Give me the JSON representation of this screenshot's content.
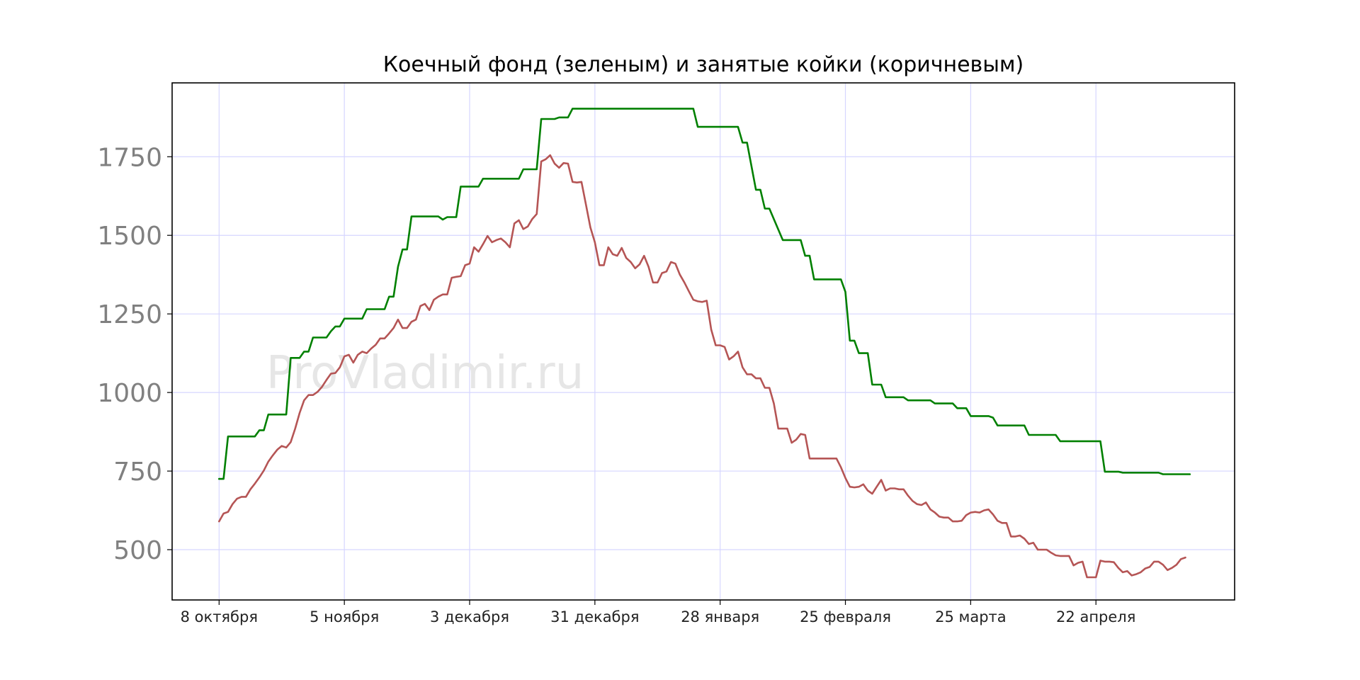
{
  "chart_data": {
    "type": "line",
    "title": "Коечный фонд (зеленым) и занятые койки (коричневым)",
    "watermark": "ProVladimir.ru",
    "xlabel": "",
    "ylabel": "",
    "grid": true,
    "legend": "none",
    "x_ticks": [
      {
        "day": 0,
        "label": "8 октября"
      },
      {
        "day": 28,
        "label": "5 ноября"
      },
      {
        "day": 56,
        "label": "3 декабря"
      },
      {
        "day": 84,
        "label": "31 декабря"
      },
      {
        "day": 112,
        "label": "28 января"
      },
      {
        "day": 140,
        "label": "25 февраля"
      },
      {
        "day": 168,
        "label": "25 марта"
      },
      {
        "day": 196,
        "label": "22 апреля"
      }
    ],
    "x_range": [
      -10.5,
      227
    ],
    "y_ticks": [
      500,
      750,
      1000,
      1250,
      1500,
      1750
    ],
    "ylim": [
      340,
      1985
    ],
    "series": [
      {
        "color": "#008000",
        "points": [
          [
            0,
            725
          ],
          [
            1,
            725
          ],
          [
            2,
            860
          ],
          [
            8,
            860
          ],
          [
            9,
            880
          ],
          [
            10,
            880
          ],
          [
            11,
            930
          ],
          [
            15,
            930
          ],
          [
            16,
            1110
          ],
          [
            18,
            1110
          ],
          [
            19,
            1130
          ],
          [
            20,
            1130
          ],
          [
            21,
            1175
          ],
          [
            24,
            1175
          ],
          [
            25,
            1195
          ],
          [
            26,
            1210
          ],
          [
            27,
            1210
          ],
          [
            28,
            1235
          ],
          [
            32,
            1235
          ],
          [
            33,
            1265
          ],
          [
            37,
            1265
          ],
          [
            38,
            1305
          ],
          [
            39,
            1305
          ],
          [
            40,
            1400
          ],
          [
            41,
            1455
          ],
          [
            42,
            1455
          ],
          [
            43,
            1560
          ],
          [
            49,
            1560
          ],
          [
            50,
            1550
          ],
          [
            51,
            1558
          ],
          [
            53,
            1558
          ],
          [
            54,
            1655
          ],
          [
            58,
            1655
          ],
          [
            59,
            1680
          ],
          [
            67,
            1680
          ],
          [
            68,
            1710
          ],
          [
            71,
            1710
          ],
          [
            72,
            1870
          ],
          [
            75,
            1870
          ],
          [
            76,
            1875
          ],
          [
            78,
            1875
          ],
          [
            79,
            1903
          ],
          [
            106,
            1903
          ],
          [
            107,
            1845
          ],
          [
            116,
            1845
          ],
          [
            117,
            1795
          ],
          [
            118,
            1795
          ],
          [
            120,
            1645
          ],
          [
            121,
            1645
          ],
          [
            122,
            1585
          ],
          [
            123,
            1585
          ],
          [
            126,
            1485
          ],
          [
            130,
            1485
          ],
          [
            131,
            1435
          ],
          [
            132,
            1435
          ],
          [
            133,
            1360
          ],
          [
            139,
            1360
          ],
          [
            140,
            1320
          ],
          [
            141,
            1165
          ],
          [
            142,
            1165
          ],
          [
            143,
            1125
          ],
          [
            145,
            1125
          ],
          [
            146,
            1025
          ],
          [
            148,
            1025
          ],
          [
            149,
            985
          ],
          [
            153,
            985
          ],
          [
            154,
            975
          ],
          [
            159,
            975
          ],
          [
            160,
            965
          ],
          [
            164,
            965
          ],
          [
            165,
            950
          ],
          [
            167,
            950
          ],
          [
            168,
            925
          ],
          [
            172,
            925
          ],
          [
            173,
            920
          ],
          [
            174,
            895
          ],
          [
            180,
            895
          ],
          [
            181,
            865
          ],
          [
            187,
            865
          ],
          [
            188,
            845
          ],
          [
            197,
            845
          ],
          [
            198,
            748
          ],
          [
            201,
            748
          ],
          [
            202,
            745
          ],
          [
            210,
            745
          ],
          [
            211,
            740
          ],
          [
            217,
            740
          ]
        ]
      },
      {
        "color": "#b55555",
        "points": [
          [
            0,
            590
          ],
          [
            1,
            615
          ],
          [
            2,
            620
          ],
          [
            3,
            645
          ],
          [
            4,
            662
          ],
          [
            5,
            668
          ],
          [
            6,
            668
          ],
          [
            7,
            692
          ],
          [
            8,
            710
          ],
          [
            9,
            730
          ],
          [
            10,
            752
          ],
          [
            11,
            780
          ],
          [
            12,
            800
          ],
          [
            13,
            818
          ],
          [
            14,
            830
          ],
          [
            15,
            825
          ],
          [
            16,
            842
          ],
          [
            17,
            885
          ],
          [
            18,
            935
          ],
          [
            19,
            975
          ],
          [
            20,
            992
          ],
          [
            21,
            992
          ],
          [
            22,
            1002
          ],
          [
            23,
            1018
          ],
          [
            24,
            1040
          ],
          [
            25,
            1060
          ],
          [
            26,
            1062
          ],
          [
            27,
            1080
          ],
          [
            28,
            1115
          ],
          [
            29,
            1120
          ],
          [
            30,
            1095
          ],
          [
            31,
            1120
          ],
          [
            32,
            1130
          ],
          [
            33,
            1125
          ],
          [
            34,
            1140
          ],
          [
            35,
            1152
          ],
          [
            36,
            1172
          ],
          [
            37,
            1172
          ],
          [
            38,
            1188
          ],
          [
            39,
            1205
          ],
          [
            40,
            1232
          ],
          [
            41,
            1205
          ],
          [
            42,
            1205
          ],
          [
            43,
            1225
          ],
          [
            44,
            1232
          ],
          [
            45,
            1275
          ],
          [
            46,
            1282
          ],
          [
            47,
            1262
          ],
          [
            48,
            1295
          ],
          [
            49,
            1305
          ],
          [
            50,
            1312
          ],
          [
            51,
            1312
          ],
          [
            52,
            1365
          ],
          [
            53,
            1368
          ],
          [
            54,
            1370
          ],
          [
            55,
            1405
          ],
          [
            56,
            1410
          ],
          [
            57,
            1462
          ],
          [
            58,
            1448
          ],
          [
            59,
            1472
          ],
          [
            60,
            1498
          ],
          [
            61,
            1478
          ],
          [
            62,
            1485
          ],
          [
            63,
            1490
          ],
          [
            64,
            1478
          ],
          [
            65,
            1462
          ],
          [
            66,
            1538
          ],
          [
            67,
            1548
          ],
          [
            68,
            1520
          ],
          [
            69,
            1528
          ],
          [
            70,
            1552
          ],
          [
            71,
            1568
          ],
          [
            72,
            1735
          ],
          [
            73,
            1742
          ],
          [
            74,
            1755
          ],
          [
            75,
            1728
          ],
          [
            76,
            1715
          ],
          [
            77,
            1730
          ],
          [
            78,
            1728
          ],
          [
            79,
            1670
          ],
          [
            80,
            1668
          ],
          [
            81,
            1670
          ],
          [
            82,
            1598
          ],
          [
            83,
            1525
          ],
          [
            84,
            1478
          ],
          [
            85,
            1405
          ],
          [
            86,
            1405
          ],
          [
            87,
            1462
          ],
          [
            88,
            1440
          ],
          [
            89,
            1435
          ],
          [
            90,
            1460
          ],
          [
            91,
            1428
          ],
          [
            92,
            1415
          ],
          [
            93,
            1395
          ],
          [
            94,
            1408
          ],
          [
            95,
            1435
          ],
          [
            96,
            1400
          ],
          [
            97,
            1350
          ],
          [
            98,
            1350
          ],
          [
            99,
            1380
          ],
          [
            100,
            1385
          ],
          [
            101,
            1415
          ],
          [
            102,
            1410
          ],
          [
            103,
            1375
          ],
          [
            104,
            1350
          ],
          [
            105,
            1322
          ],
          [
            106,
            1295
          ],
          [
            107,
            1290
          ],
          [
            108,
            1288
          ],
          [
            109,
            1292
          ],
          [
            110,
            1200
          ],
          [
            111,
            1150
          ],
          [
            112,
            1150
          ],
          [
            113,
            1145
          ],
          [
            114,
            1105
          ],
          [
            115,
            1115
          ],
          [
            116,
            1130
          ],
          [
            117,
            1080
          ],
          [
            118,
            1058
          ],
          [
            119,
            1058
          ],
          [
            120,
            1045
          ],
          [
            121,
            1045
          ],
          [
            122,
            1015
          ],
          [
            123,
            1015
          ],
          [
            124,
            965
          ],
          [
            125,
            885
          ],
          [
            126,
            885
          ],
          [
            127,
            885
          ],
          [
            128,
            840
          ],
          [
            129,
            850
          ],
          [
            130,
            868
          ],
          [
            131,
            865
          ],
          [
            132,
            790
          ],
          [
            138,
            790
          ],
          [
            139,
            762
          ],
          [
            140,
            728
          ],
          [
            141,
            700
          ],
          [
            142,
            698
          ],
          [
            143,
            700
          ],
          [
            144,
            708
          ],
          [
            145,
            688
          ],
          [
            146,
            678
          ],
          [
            147,
            700
          ],
          [
            148,
            722
          ],
          [
            149,
            688
          ],
          [
            150,
            695
          ],
          [
            151,
            695
          ],
          [
            152,
            692
          ],
          [
            153,
            692
          ],
          [
            154,
            672
          ],
          [
            155,
            655
          ],
          [
            156,
            645
          ],
          [
            157,
            642
          ],
          [
            158,
            650
          ],
          [
            159,
            628
          ],
          [
            160,
            618
          ],
          [
            161,
            605
          ],
          [
            162,
            602
          ],
          [
            163,
            602
          ],
          [
            164,
            590
          ],
          [
            165,
            590
          ],
          [
            166,
            592
          ],
          [
            167,
            610
          ],
          [
            168,
            618
          ],
          [
            169,
            620
          ],
          [
            170,
            618
          ],
          [
            171,
            625
          ],
          [
            172,
            628
          ],
          [
            173,
            612
          ],
          [
            174,
            592
          ],
          [
            175,
            585
          ],
          [
            176,
            585
          ],
          [
            177,
            542
          ],
          [
            178,
            542
          ],
          [
            179,
            545
          ],
          [
            180,
            535
          ],
          [
            181,
            518
          ],
          [
            182,
            522
          ],
          [
            183,
            500
          ],
          [
            184,
            500
          ],
          [
            185,
            500
          ],
          [
            186,
            490
          ],
          [
            187,
            482
          ],
          [
            188,
            480
          ],
          [
            189,
            480
          ],
          [
            190,
            480
          ],
          [
            191,
            450
          ],
          [
            192,
            458
          ],
          [
            193,
            462
          ],
          [
            194,
            412
          ],
          [
            195,
            412
          ],
          [
            196,
            412
          ],
          [
            197,
            465
          ],
          [
            198,
            462
          ],
          [
            199,
            462
          ],
          [
            200,
            460
          ],
          [
            201,
            442
          ],
          [
            202,
            428
          ],
          [
            203,
            432
          ],
          [
            204,
            418
          ],
          [
            205,
            422
          ],
          [
            206,
            428
          ],
          [
            207,
            440
          ],
          [
            208,
            445
          ],
          [
            209,
            462
          ],
          [
            210,
            462
          ],
          [
            211,
            452
          ],
          [
            212,
            435
          ],
          [
            213,
            442
          ],
          [
            214,
            452
          ],
          [
            215,
            470
          ],
          [
            216,
            475
          ]
        ]
      }
    ]
  }
}
